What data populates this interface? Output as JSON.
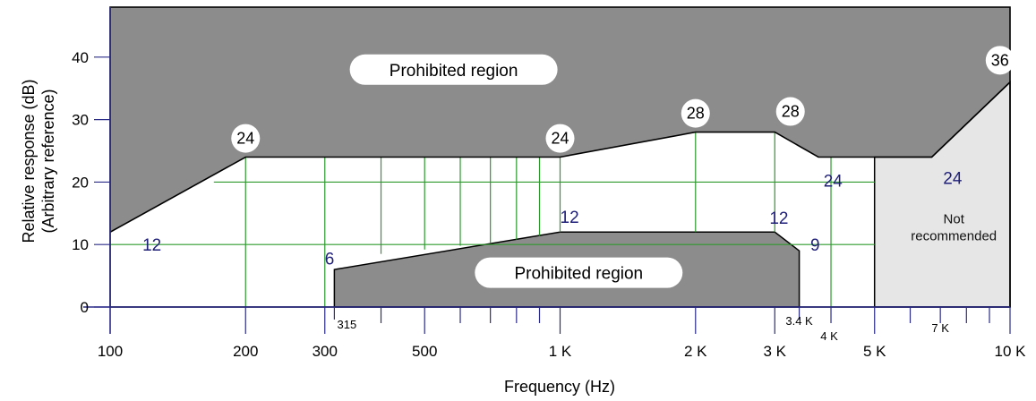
{
  "chart_data": {
    "type": "area",
    "xlabel": "Frequency (Hz)",
    "ylabel_line1": "Relative response (dB)",
    "ylabel_line2": "(Arbitrary reference)",
    "x_scale": "log",
    "xlim": [
      100,
      10000
    ],
    "ylim": [
      0,
      48
    ],
    "x_ticks": [
      {
        "value": 100,
        "label": "100"
      },
      {
        "value": 200,
        "label": "200"
      },
      {
        "value": 300,
        "label": "300"
      },
      {
        "value": 500,
        "label": "500"
      },
      {
        "value": 1000,
        "label": "1 K"
      },
      {
        "value": 2000,
        "label": "2 K"
      },
      {
        "value": 3000,
        "label": "3 K"
      },
      {
        "value": 5000,
        "label": "5 K"
      },
      {
        "value": 10000,
        "label": "10 K"
      }
    ],
    "x_small_ticks": [
      {
        "value": 315,
        "label": "315"
      },
      {
        "value": 3400,
        "label": "3.4 K"
      },
      {
        "value": 4000,
        "label": "4 K"
      },
      {
        "value": 7000,
        "label": "7 K"
      }
    ],
    "minor_x_ticks": [
      400,
      600,
      700,
      800,
      900,
      4000,
      6000,
      7000,
      8000,
      9000
    ],
    "y_ticks": [
      0,
      10,
      20,
      30,
      40
    ],
    "green_verticals": [
      {
        "x": 200,
        "y": [
          0,
          24
        ]
      },
      {
        "x": 300,
        "y": [
          0,
          24
        ]
      },
      {
        "x": 400,
        "y": [
          8.5,
          24
        ]
      },
      {
        "x": 500,
        "y": [
          9.2,
          24
        ]
      },
      {
        "x": 600,
        "y": [
          9.8,
          24
        ]
      },
      {
        "x": 700,
        "y": [
          10.3,
          24
        ]
      },
      {
        "x": 800,
        "y": [
          10.8,
          24
        ]
      },
      {
        "x": 900,
        "y": [
          11.4,
          24
        ]
      },
      {
        "x": 1000,
        "y": [
          12,
          24
        ]
      },
      {
        "x": 2000,
        "y": [
          12,
          28
        ]
      },
      {
        "x": 3000,
        "y": [
          12,
          28
        ]
      },
      {
        "x": 4000,
        "y": [
          0,
          24
        ]
      }
    ],
    "green_horizontals": [
      {
        "y": 10,
        "x": [
          100,
          5000
        ]
      },
      {
        "y": 20,
        "x": [
          170,
          5000
        ]
      }
    ],
    "upper_prohibited_boundary": [
      {
        "x": 100,
        "y": 12
      },
      {
        "x": 200,
        "y": 24
      },
      {
        "x": 1000,
        "y": 24
      },
      {
        "x": 2000,
        "y": 28
      },
      {
        "x": 3000,
        "y": 28
      },
      {
        "x": 3750,
        "y": 24
      },
      {
        "x": 6700,
        "y": 24
      },
      {
        "x": 10000,
        "y": 36
      }
    ],
    "lower_prohibited_boundary": [
      {
        "x": 315,
        "y": 0
      },
      {
        "x": 315,
        "y": 6
      },
      {
        "x": 1000,
        "y": 12
      },
      {
        "x": 3000,
        "y": 12
      },
      {
        "x": 3400,
        "y": 9
      },
      {
        "x": 3400,
        "y": 0
      }
    ],
    "not_recommended_region": [
      {
        "x": 5000,
        "y": 0
      },
      {
        "x": 5000,
        "y": 24
      },
      {
        "x": 6700,
        "y": 24
      },
      {
        "x": 10000,
        "y": 36
      },
      {
        "x": 10000,
        "y": 0
      }
    ],
    "circle_labels": [
      {
        "x": 200,
        "y": 27,
        "text": "24"
      },
      {
        "x": 1000,
        "y": 27,
        "text": "24"
      },
      {
        "x": 2000,
        "y": 31,
        "text": "28"
      },
      {
        "x": 3250,
        "y": 31.3,
        "text": "28"
      },
      {
        "x": 9500,
        "y": 39.5,
        "text": "36"
      }
    ],
    "blue_labels": [
      {
        "x": 118,
        "y": 10,
        "text": "12"
      },
      {
        "x": 1000,
        "y": 14.5,
        "text": "12"
      },
      {
        "x": 2920,
        "y": 14.3,
        "text": "12"
      },
      {
        "x": 300,
        "y": 7.8,
        "text": "6"
      },
      {
        "x": 3600,
        "y": 10,
        "text": "9"
      },
      {
        "x": 3850,
        "y": 20.3,
        "text": "24"
      },
      {
        "x": 7100,
        "y": 20.7,
        "text": "24"
      }
    ],
    "region_labels": [
      {
        "x": 580,
        "y": 38,
        "text": "Prohibited region",
        "pill_width": 232
      },
      {
        "x": 1100,
        "y": 5.5,
        "text": "Prohibited region",
        "pill_width": 232
      }
    ],
    "not_recommended_text": [
      "Not",
      "recommended"
    ],
    "colors": {
      "prohibited": "#8c8c8c",
      "not_recommended": "#e6e6e6",
      "grid": "#2e9a2e",
      "axis": "#2b2b8a",
      "outline": "#000000",
      "blue_text": "#1f1f7a"
    }
  }
}
